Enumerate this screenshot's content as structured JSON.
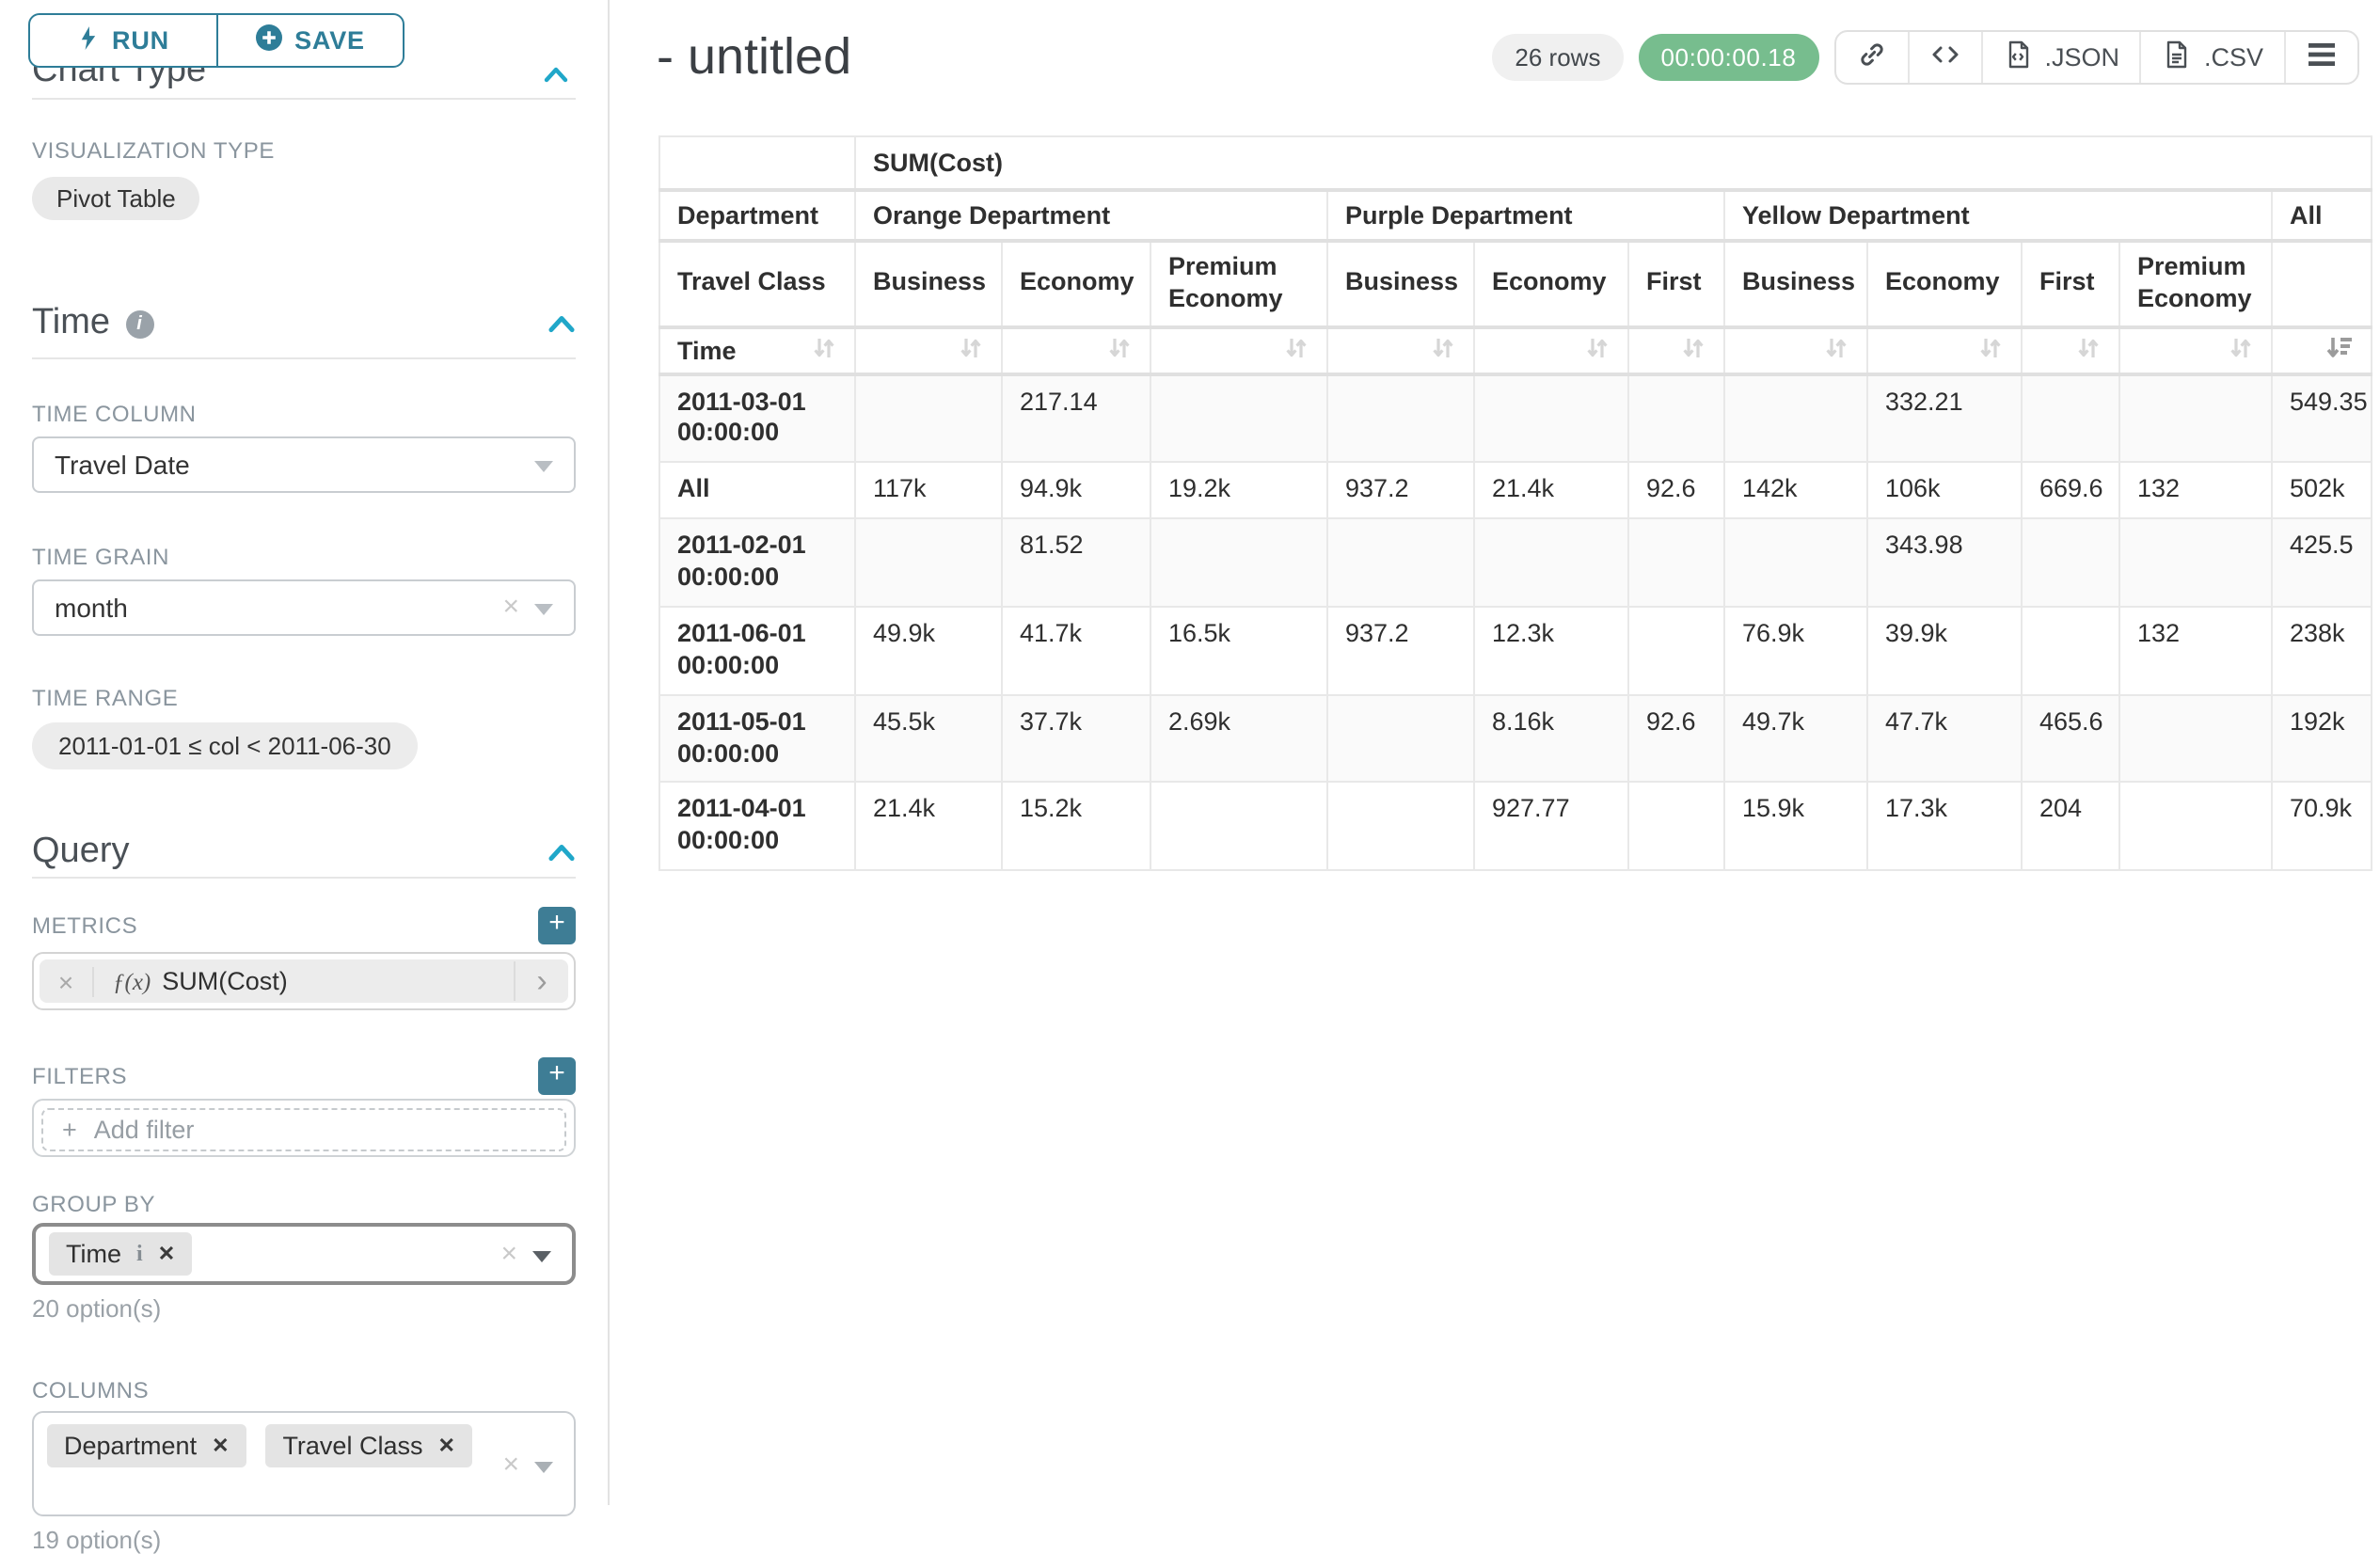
{
  "colors": {
    "accent_teal": "#2e7d98",
    "chevron_blue": "#20a7c9",
    "timer_green": "#77bd8e",
    "label_gray": "#8a959e"
  },
  "sidebar": {
    "run_label": "RUN",
    "save_label": "SAVE",
    "chart_type_heading": "Chart Type",
    "viz": {
      "label": "VISUALIZATION TYPE",
      "value": "Pivot Table"
    },
    "time": {
      "heading": "Time",
      "column_label": "TIME COLUMN",
      "column_value": "Travel Date",
      "grain_label": "TIME GRAIN",
      "grain_value": "month",
      "range_label": "TIME RANGE",
      "range_value": "2011-01-01 ≤ col < 2011-06-30"
    },
    "query": {
      "heading": "Query",
      "metrics_label": "METRICS",
      "metric_fx": "ƒ(x)",
      "metric_value": "SUM(Cost)",
      "filters_label": "FILTERS",
      "add_filter_label": "Add filter",
      "group_by_label": "GROUP BY",
      "group_by_tag": "Time",
      "group_by_hint": "20 option(s)",
      "columns_label": "COLUMNS",
      "columns_tags": [
        "Department",
        "Travel Class"
      ],
      "columns_hint": "19 option(s)"
    }
  },
  "header": {
    "title": "- untitled",
    "rows_badge": "26 rows",
    "timer_badge": "00:00:00.18",
    "export_json_label": ".JSON",
    "export_csv_label": ".CSV"
  },
  "table": {
    "metric_header": "SUM(Cost)",
    "row_header_top": "Department",
    "row_header_mid": "Travel Class",
    "row_header_sort": "Time",
    "sorted_column": "All",
    "groups": [
      {
        "label": "Orange Department",
        "cols": [
          "Business",
          "Economy",
          "Premium Economy"
        ]
      },
      {
        "label": "Purple Department",
        "cols": [
          "Business",
          "Economy",
          "First"
        ]
      },
      {
        "label": "Yellow Department",
        "cols": [
          "Business",
          "Economy",
          "First",
          "Premium Economy"
        ]
      },
      {
        "label": "All",
        "cols": [
          ""
        ]
      }
    ],
    "rows": [
      {
        "label": "2011-03-01 00:00:00",
        "values": [
          "",
          "217.14",
          "",
          "",
          "",
          "",
          "",
          "332.21",
          "",
          "",
          "549.35"
        ]
      },
      {
        "label": "All",
        "values": [
          "117k",
          "94.9k",
          "19.2k",
          "937.2",
          "21.4k",
          "92.6",
          "142k",
          "106k",
          "669.6",
          "132",
          "502k"
        ]
      },
      {
        "label": "2011-02-01 00:00:00",
        "values": [
          "",
          "81.52",
          "",
          "",
          "",
          "",
          "",
          "343.98",
          "",
          "",
          "425.5"
        ]
      },
      {
        "label": "2011-06-01 00:00:00",
        "values": [
          "49.9k",
          "41.7k",
          "16.5k",
          "937.2",
          "12.3k",
          "",
          "76.9k",
          "39.9k",
          "",
          "132",
          "238k"
        ]
      },
      {
        "label": "2011-05-01 00:00:00",
        "values": [
          "45.5k",
          "37.7k",
          "2.69k",
          "",
          "8.16k",
          "92.6",
          "49.7k",
          "47.7k",
          "465.6",
          "",
          "192k"
        ]
      },
      {
        "label": "2011-04-01 00:00:00",
        "values": [
          "21.4k",
          "15.2k",
          "",
          "",
          "927.77",
          "",
          "15.9k",
          "17.3k",
          "204",
          "",
          "70.9k"
        ]
      }
    ]
  }
}
